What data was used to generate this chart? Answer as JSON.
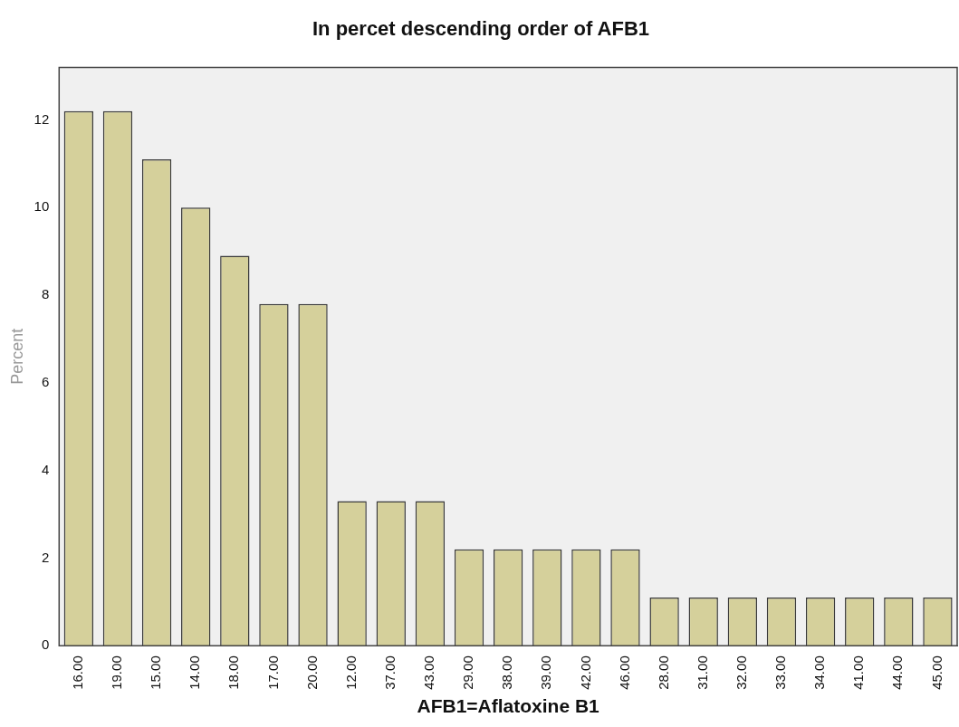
{
  "chart_data": {
    "type": "bar",
    "title": "In percet descending order of AFB1",
    "xlabel": "AFB1=Aflatoxine B1",
    "ylabel": "Percent",
    "categories": [
      "16.00",
      "19.00",
      "15.00",
      "14.00",
      "18.00",
      "17.00",
      "20.00",
      "12.00",
      "37.00",
      "43.00",
      "29.00",
      "38.00",
      "39.00",
      "42.00",
      "46.00",
      "28.00",
      "31.00",
      "32.00",
      "33.00",
      "34.00",
      "41.00",
      "44.00",
      "45.00"
    ],
    "values": [
      12.2,
      12.2,
      11.1,
      10,
      8.9,
      7.8,
      7.8,
      3.3,
      3.3,
      3.3,
      2.2,
      2.2,
      2.2,
      2.2,
      2.2,
      1.1,
      1.1,
      1.1,
      1.1,
      1.1,
      1.1,
      1.1,
      1.1
    ],
    "color": "#d5d09b",
    "ylim": [
      0,
      13.2
    ],
    "yticks": [
      0,
      2,
      4,
      6,
      8,
      10,
      12
    ],
    "grid": false,
    "legend": false
  }
}
